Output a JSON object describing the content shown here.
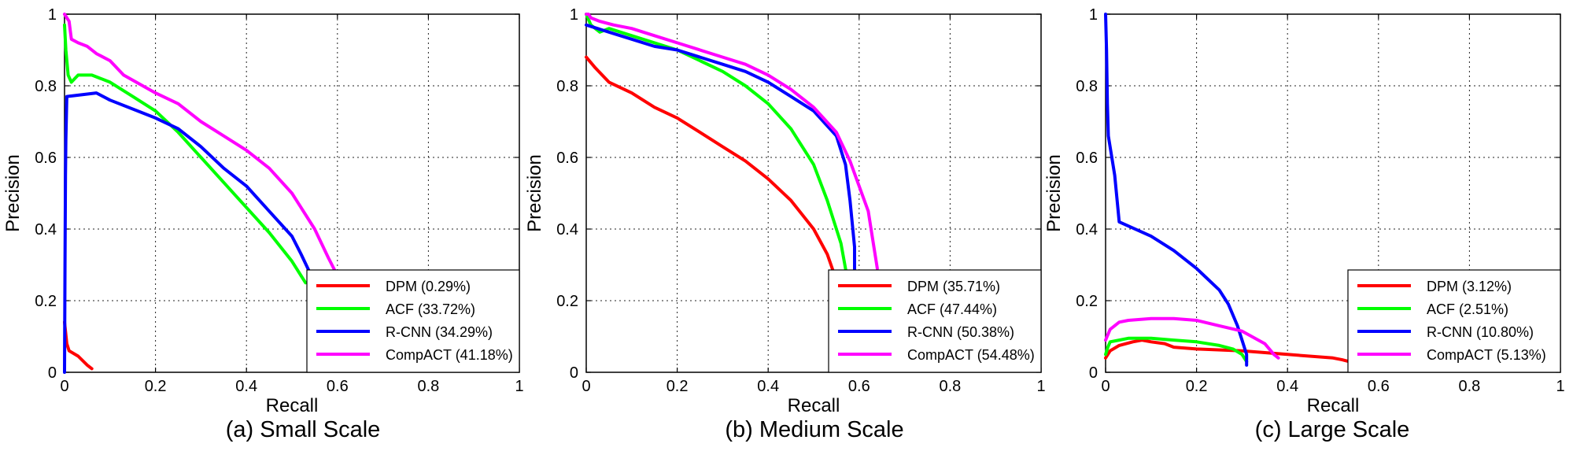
{
  "chart_data": [
    {
      "type": "line",
      "caption": "(a) Small Scale",
      "xlabel": "Recall",
      "ylabel": "Precision",
      "xlim": [
        0,
        1
      ],
      "ylim": [
        0,
        1
      ],
      "xticks": [
        "0",
        "0.2",
        "0.4",
        "0.6",
        "0.8",
        "1"
      ],
      "yticks": [
        "0",
        "0.2",
        "0.4",
        "0.6",
        "0.8",
        "1"
      ],
      "grid": true,
      "legend_position": "bottom-right",
      "series": [
        {
          "name": "DPM (0.29%)",
          "color": "#ff0000",
          "points": [
            [
              0.0,
              0.14
            ],
            [
              0.005,
              0.08
            ],
            [
              0.01,
              0.06
            ],
            [
              0.03,
              0.045
            ],
            [
              0.05,
              0.02
            ],
            [
              0.06,
              0.01
            ]
          ]
        },
        {
          "name": "ACF (33.72%)",
          "color": "#00ff00",
          "points": [
            [
              0.0,
              0.97
            ],
            [
              0.003,
              0.9
            ],
            [
              0.008,
              0.83
            ],
            [
              0.015,
              0.81
            ],
            [
              0.03,
              0.83
            ],
            [
              0.06,
              0.83
            ],
            [
              0.1,
              0.81
            ],
            [
              0.15,
              0.77
            ],
            [
              0.2,
              0.73
            ],
            [
              0.25,
              0.67
            ],
            [
              0.3,
              0.6
            ],
            [
              0.35,
              0.53
            ],
            [
              0.4,
              0.46
            ],
            [
              0.45,
              0.39
            ],
            [
              0.5,
              0.31
            ],
            [
              0.53,
              0.25
            ]
          ]
        },
        {
          "name": "R-CNN (34.29%)",
          "color": "#0000ff",
          "points": [
            [
              0.0,
              0.0
            ],
            [
              0.001,
              0.3
            ],
            [
              0.002,
              0.55
            ],
            [
              0.003,
              0.65
            ],
            [
              0.005,
              0.77
            ],
            [
              0.07,
              0.78
            ],
            [
              0.1,
              0.76
            ],
            [
              0.2,
              0.71
            ],
            [
              0.25,
              0.68
            ],
            [
              0.3,
              0.63
            ],
            [
              0.35,
              0.57
            ],
            [
              0.4,
              0.52
            ],
            [
              0.45,
              0.45
            ],
            [
              0.5,
              0.38
            ],
            [
              0.52,
              0.33
            ],
            [
              0.55,
              0.25
            ]
          ]
        },
        {
          "name": "CompACT (41.18%)",
          "color": "#ff00ff",
          "points": [
            [
              0.0,
              1.0
            ],
            [
              0.005,
              0.99
            ],
            [
              0.01,
              0.98
            ],
            [
              0.015,
              0.93
            ],
            [
              0.03,
              0.92
            ],
            [
              0.05,
              0.91
            ],
            [
              0.07,
              0.89
            ],
            [
              0.1,
              0.87
            ],
            [
              0.13,
              0.83
            ],
            [
              0.2,
              0.78
            ],
            [
              0.25,
              0.75
            ],
            [
              0.3,
              0.7
            ],
            [
              0.35,
              0.66
            ],
            [
              0.4,
              0.62
            ],
            [
              0.45,
              0.57
            ],
            [
              0.5,
              0.5
            ],
            [
              0.55,
              0.4
            ],
            [
              0.58,
              0.32
            ],
            [
              0.6,
              0.27
            ]
          ]
        }
      ]
    },
    {
      "type": "line",
      "caption": "(b) Medium Scale",
      "xlabel": "Recall",
      "ylabel": "Precision",
      "xlim": [
        0,
        1
      ],
      "ylim": [
        0,
        1
      ],
      "xticks": [
        "0",
        "0.2",
        "0.4",
        "0.6",
        "0.8",
        "1"
      ],
      "yticks": [
        "0",
        "0.2",
        "0.4",
        "0.6",
        "0.8",
        "1"
      ],
      "grid": true,
      "legend_position": "bottom-right",
      "series": [
        {
          "name": "DPM (35.71%)",
          "color": "#ff0000",
          "points": [
            [
              0.0,
              0.88
            ],
            [
              0.02,
              0.85
            ],
            [
              0.05,
              0.81
            ],
            [
              0.1,
              0.78
            ],
            [
              0.15,
              0.74
            ],
            [
              0.2,
              0.71
            ],
            [
              0.25,
              0.67
            ],
            [
              0.3,
              0.63
            ],
            [
              0.35,
              0.59
            ],
            [
              0.4,
              0.54
            ],
            [
              0.45,
              0.48
            ],
            [
              0.5,
              0.4
            ],
            [
              0.53,
              0.33
            ],
            [
              0.56,
              0.22
            ]
          ]
        },
        {
          "name": "ACF (47.44%)",
          "color": "#00ff00",
          "points": [
            [
              0.0,
              1.0
            ],
            [
              0.01,
              0.97
            ],
            [
              0.03,
              0.95
            ],
            [
              0.05,
              0.96
            ],
            [
              0.1,
              0.94
            ],
            [
              0.15,
              0.92
            ],
            [
              0.2,
              0.9
            ],
            [
              0.25,
              0.87
            ],
            [
              0.3,
              0.84
            ],
            [
              0.35,
              0.8
            ],
            [
              0.4,
              0.75
            ],
            [
              0.45,
              0.68
            ],
            [
              0.5,
              0.58
            ],
            [
              0.53,
              0.48
            ],
            [
              0.56,
              0.36
            ],
            [
              0.58,
              0.22
            ]
          ]
        },
        {
          "name": "R-CNN (50.38%)",
          "color": "#0000ff",
          "points": [
            [
              0.0,
              0.97
            ],
            [
              0.05,
              0.95
            ],
            [
              0.1,
              0.93
            ],
            [
              0.15,
              0.91
            ],
            [
              0.2,
              0.9
            ],
            [
              0.25,
              0.88
            ],
            [
              0.3,
              0.86
            ],
            [
              0.35,
              0.84
            ],
            [
              0.4,
              0.81
            ],
            [
              0.45,
              0.77
            ],
            [
              0.5,
              0.73
            ],
            [
              0.55,
              0.66
            ],
            [
              0.57,
              0.58
            ],
            [
              0.58,
              0.48
            ],
            [
              0.59,
              0.35
            ],
            [
              0.59,
              0.22
            ]
          ]
        },
        {
          "name": "CompACT (54.48%)",
          "color": "#ff00ff",
          "points": [
            [
              0.0,
              1.0
            ],
            [
              0.005,
              1.0
            ],
            [
              0.01,
              0.99
            ],
            [
              0.03,
              0.98
            ],
            [
              0.06,
              0.97
            ],
            [
              0.1,
              0.96
            ],
            [
              0.15,
              0.94
            ],
            [
              0.2,
              0.92
            ],
            [
              0.25,
              0.9
            ],
            [
              0.3,
              0.88
            ],
            [
              0.35,
              0.86
            ],
            [
              0.4,
              0.83
            ],
            [
              0.45,
              0.79
            ],
            [
              0.5,
              0.74
            ],
            [
              0.55,
              0.67
            ],
            [
              0.58,
              0.59
            ],
            [
              0.6,
              0.52
            ],
            [
              0.62,
              0.45
            ],
            [
              0.63,
              0.37
            ],
            [
              0.64,
              0.29
            ]
          ]
        }
      ]
    },
    {
      "type": "line",
      "caption": "(c) Large Scale",
      "xlabel": "Recall",
      "ylabel": "Precision",
      "xlim": [
        0,
        1
      ],
      "ylim": [
        0,
        1
      ],
      "xticks": [
        "0",
        "0.2",
        "0.4",
        "0.6",
        "0.8",
        "1"
      ],
      "yticks": [
        "0",
        "0.2",
        "0.4",
        "0.6",
        "0.8",
        "1"
      ],
      "grid": true,
      "legend_position": "bottom-right",
      "series": [
        {
          "name": "DPM (3.12%)",
          "color": "#ff0000",
          "points": [
            [
              0.0,
              0.04
            ],
            [
              0.01,
              0.06
            ],
            [
              0.03,
              0.075
            ],
            [
              0.06,
              0.085
            ],
            [
              0.08,
              0.09
            ],
            [
              0.1,
              0.085
            ],
            [
              0.13,
              0.08
            ],
            [
              0.15,
              0.07
            ],
            [
              0.2,
              0.065
            ],
            [
              0.3,
              0.06
            ],
            [
              0.4,
              0.05
            ],
            [
              0.5,
              0.04
            ],
            [
              0.52,
              0.035
            ],
            [
              0.55,
              0.025
            ],
            [
              0.57,
              0.02
            ]
          ]
        },
        {
          "name": "ACF (2.51%)",
          "color": "#00ff00",
          "points": [
            [
              0.0,
              0.05
            ],
            [
              0.005,
              0.07
            ],
            [
              0.01,
              0.085
            ],
            [
              0.03,
              0.09
            ],
            [
              0.05,
              0.095
            ],
            [
              0.1,
              0.095
            ],
            [
              0.15,
              0.09
            ],
            [
              0.2,
              0.085
            ],
            [
              0.25,
              0.075
            ],
            [
              0.28,
              0.065
            ],
            [
              0.3,
              0.05
            ],
            [
              0.31,
              0.03
            ]
          ]
        },
        {
          "name": "R-CNN (10.80%)",
          "color": "#0000ff",
          "points": [
            [
              0.0,
              1.0
            ],
            [
              0.002,
              0.9
            ],
            [
              0.004,
              0.75
            ],
            [
              0.006,
              0.66
            ],
            [
              0.02,
              0.55
            ],
            [
              0.03,
              0.42
            ],
            [
              0.1,
              0.38
            ],
            [
              0.15,
              0.34
            ],
            [
              0.2,
              0.29
            ],
            [
              0.25,
              0.23
            ],
            [
              0.27,
              0.19
            ],
            [
              0.29,
              0.13
            ],
            [
              0.3,
              0.09
            ],
            [
              0.31,
              0.05
            ],
            [
              0.31,
              0.02
            ]
          ]
        },
        {
          "name": "CompACT (5.13%)",
          "color": "#ff00ff",
          "points": [
            [
              0.0,
              0.09
            ],
            [
              0.01,
              0.12
            ],
            [
              0.03,
              0.14
            ],
            [
              0.05,
              0.145
            ],
            [
              0.1,
              0.15
            ],
            [
              0.15,
              0.15
            ],
            [
              0.2,
              0.145
            ],
            [
              0.25,
              0.13
            ],
            [
              0.3,
              0.115
            ],
            [
              0.35,
              0.08
            ],
            [
              0.37,
              0.05
            ],
            [
              0.38,
              0.04
            ]
          ]
        }
      ]
    }
  ]
}
